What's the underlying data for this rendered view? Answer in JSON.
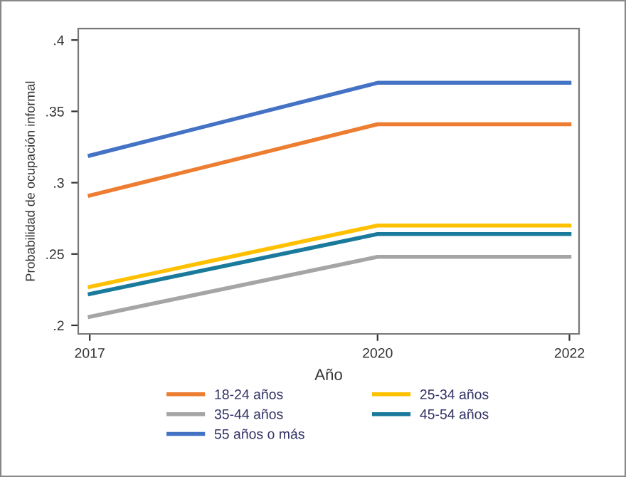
{
  "chart_data": {
    "type": "line",
    "xlabel": "Año",
    "ylabel": "Probabilidad de ocupación informal",
    "x": [
      2017,
      2020,
      2022
    ],
    "series": [
      {
        "name": "18-24 años",
        "color": "#ed7d31",
        "values": [
          0.291,
          0.341,
          0.341
        ]
      },
      {
        "name": "25-34 años",
        "color": "#ffc000",
        "values": [
          0.227,
          0.27,
          0.27
        ]
      },
      {
        "name": "35-44 años",
        "color": "#a5a5a5",
        "values": [
          0.206,
          0.248,
          0.248
        ]
      },
      {
        "name": "45-54 años",
        "color": "#1a7a9c",
        "values": [
          0.222,
          0.264,
          0.264
        ]
      },
      {
        "name": "55 años o más",
        "color": "#4472c4",
        "values": [
          0.319,
          0.37,
          0.37
        ]
      }
    ],
    "xlim": [
      2016.88,
      2022.1
    ],
    "ylim": [
      0.194,
      0.408
    ],
    "xticks": [
      2017,
      2020,
      2022
    ],
    "yticks": [
      {
        "value": 0.2,
        "label": ".2"
      },
      {
        "value": 0.25,
        "label": ".25"
      },
      {
        "value": 0.3,
        "label": ".3"
      },
      {
        "value": 0.35,
        "label": ".35"
      },
      {
        "value": 0.4,
        "label": ".4"
      }
    ],
    "grid": false,
    "legend": "bottom",
    "marker": "none",
    "line_style": "solid"
  }
}
